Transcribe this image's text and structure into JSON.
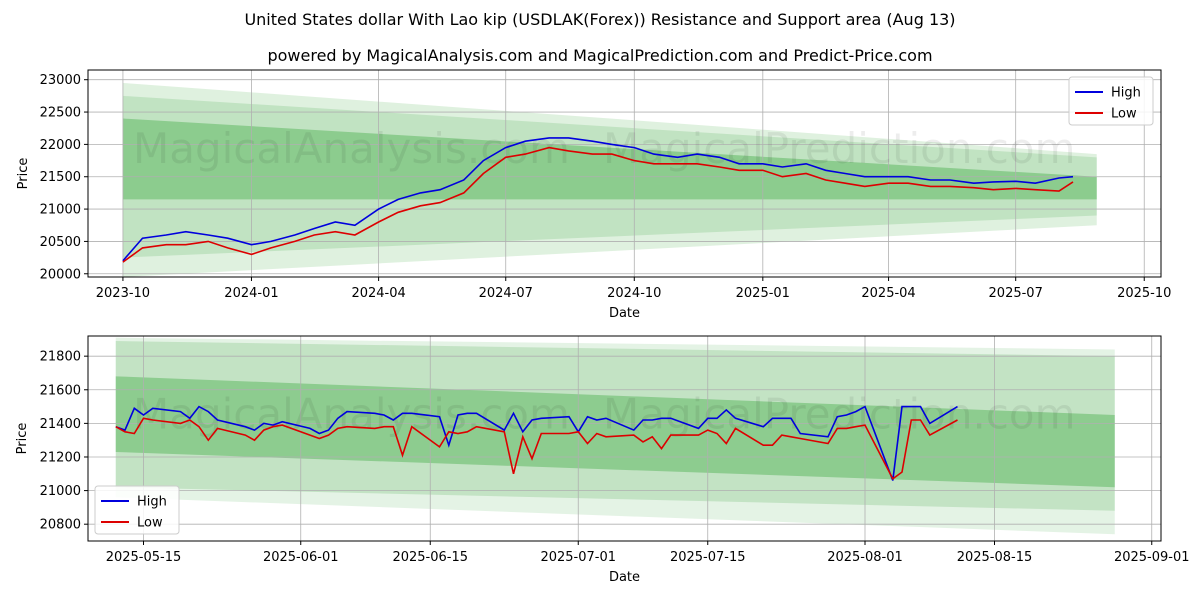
{
  "titles": {
    "main": "United States dollar With Lao kip (USDLAK(Forex)) Resistance and Support area (Aug 13)",
    "sub": "powered by MagicalAnalysis.com and MagicalPrediction.com and Predict-Price.com"
  },
  "watermarks": [
    "MagicalAnalysis.com",
    "MagicalPrediction.com"
  ],
  "colors": {
    "high": "#0000dd",
    "low": "#dd0000",
    "band": "#4caf50"
  },
  "chart_data": [
    {
      "type": "line",
      "xlabel": "Date",
      "ylabel": "Price",
      "grid": true,
      "legend": "top-right",
      "ylim": [
        19950,
        23150
      ],
      "xlim": [
        "2023-09-06",
        "2025-10-13"
      ],
      "x_ticks": [
        {
          "date": "2023-10-01",
          "label": "2023-10"
        },
        {
          "date": "2024-01-01",
          "label": "2024-01"
        },
        {
          "date": "2024-04-01",
          "label": "2024-04"
        },
        {
          "date": "2024-07-01",
          "label": "2024-07"
        },
        {
          "date": "2024-10-01",
          "label": "2024-10"
        },
        {
          "date": "2025-01-01",
          "label": "2025-01"
        },
        {
          "date": "2025-04-01",
          "label": "2025-04"
        },
        {
          "date": "2025-07-01",
          "label": "2025-07"
        },
        {
          "date": "2025-10-01",
          "label": "2025-10"
        }
      ],
      "y_ticks": [
        20000,
        20500,
        21000,
        21500,
        22000,
        22500,
        23000
      ],
      "series": [
        {
          "name": "High",
          "x": [
            "2023-10-01",
            "2023-10-15",
            "2023-11-01",
            "2023-11-15",
            "2023-12-01",
            "2023-12-15",
            "2024-01-01",
            "2024-01-15",
            "2024-02-01",
            "2024-02-15",
            "2024-03-01",
            "2024-03-15",
            "2024-04-01",
            "2024-04-15",
            "2024-05-01",
            "2024-05-15",
            "2024-06-01",
            "2024-06-15",
            "2024-07-01",
            "2024-07-15",
            "2024-08-01",
            "2024-08-15",
            "2024-09-01",
            "2024-09-15",
            "2024-10-01",
            "2024-10-15",
            "2024-11-01",
            "2024-11-15",
            "2024-12-01",
            "2024-12-15",
            "2025-01-01",
            "2025-01-15",
            "2025-02-01",
            "2025-02-15",
            "2025-03-01",
            "2025-03-15",
            "2025-04-01",
            "2025-04-15",
            "2025-05-01",
            "2025-05-15",
            "2025-06-01",
            "2025-06-15",
            "2025-07-01",
            "2025-07-15",
            "2025-08-01",
            "2025-08-11"
          ],
          "values": [
            20200,
            20550,
            20600,
            20650,
            20600,
            20550,
            20450,
            20500,
            20600,
            20700,
            20800,
            20750,
            21000,
            21150,
            21250,
            21300,
            21450,
            21750,
            21950,
            22050,
            22100,
            22100,
            22050,
            22000,
            21950,
            21850,
            21800,
            21850,
            21800,
            21700,
            21700,
            21650,
            21700,
            21600,
            21550,
            21500,
            21500,
            21500,
            21450,
            21450,
            21400,
            21420,
            21430,
            21400,
            21480,
            21500
          ]
        },
        {
          "name": "Low",
          "x": [
            "2023-10-01",
            "2023-10-15",
            "2023-11-01",
            "2023-11-15",
            "2023-12-01",
            "2023-12-15",
            "2024-01-01",
            "2024-01-15",
            "2024-02-01",
            "2024-02-15",
            "2024-03-01",
            "2024-03-15",
            "2024-04-01",
            "2024-04-15",
            "2024-05-01",
            "2024-05-15",
            "2024-06-01",
            "2024-06-15",
            "2024-07-01",
            "2024-07-15",
            "2024-08-01",
            "2024-08-15",
            "2024-09-01",
            "2024-09-15",
            "2024-10-01",
            "2024-10-15",
            "2024-11-01",
            "2024-11-15",
            "2024-12-01",
            "2024-12-15",
            "2025-01-01",
            "2025-01-15",
            "2025-02-01",
            "2025-02-15",
            "2025-03-01",
            "2025-03-15",
            "2025-04-01",
            "2025-04-15",
            "2025-05-01",
            "2025-05-15",
            "2025-06-01",
            "2025-06-15",
            "2025-07-01",
            "2025-07-15",
            "2025-08-01",
            "2025-08-11"
          ],
          "values": [
            20180,
            20400,
            20450,
            20450,
            20500,
            20400,
            20300,
            20400,
            20500,
            20600,
            20650,
            20600,
            20800,
            20950,
            21050,
            21100,
            21250,
            21550,
            21800,
            21850,
            21950,
            21900,
            21850,
            21850,
            21750,
            21700,
            21700,
            21700,
            21650,
            21600,
            21600,
            21500,
            21550,
            21450,
            21400,
            21350,
            21400,
            21400,
            21350,
            21350,
            21330,
            21300,
            21320,
            21300,
            21280,
            21420
          ]
        }
      ],
      "bands": [
        {
          "start": "2023-10-01",
          "end": "2025-08-28",
          "upper": [
            22950,
            21850
          ],
          "lower": [
            19950,
            20750
          ],
          "opacity": 0.18
        },
        {
          "start": "2023-10-01",
          "end": "2025-08-28",
          "upper": [
            22750,
            21800
          ],
          "lower": [
            20250,
            20900
          ],
          "opacity": 0.2
        },
        {
          "start": "2023-10-01",
          "end": "2025-08-28",
          "upper": [
            22400,
            21500
          ],
          "lower": [
            21150,
            21150
          ],
          "opacity": 0.45
        }
      ]
    },
    {
      "type": "line",
      "xlabel": "Date",
      "ylabel": "Price",
      "grid": true,
      "legend": "bottom-left",
      "ylim": [
        20700,
        21920
      ],
      "xlim": [
        "2025-05-09",
        "2025-09-02"
      ],
      "x_ticks": [
        {
          "date": "2025-05-15",
          "label": "2025-05-15"
        },
        {
          "date": "2025-06-01",
          "label": "2025-06-01"
        },
        {
          "date": "2025-06-15",
          "label": "2025-06-15"
        },
        {
          "date": "2025-07-01",
          "label": "2025-07-01"
        },
        {
          "date": "2025-07-15",
          "label": "2025-07-15"
        },
        {
          "date": "2025-08-01",
          "label": "2025-08-01"
        },
        {
          "date": "2025-08-15",
          "label": "2025-08-15"
        },
        {
          "date": "2025-09-01",
          "label": "2025-09-01"
        }
      ],
      "y_ticks": [
        20800,
        21000,
        21200,
        21400,
        21600,
        21800
      ],
      "series": [
        {
          "name": "High",
          "x": [
            "2025-05-12",
            "2025-05-13",
            "2025-05-14",
            "2025-05-15",
            "2025-05-16",
            "2025-05-19",
            "2025-05-20",
            "2025-05-21",
            "2025-05-22",
            "2025-05-23",
            "2025-05-26",
            "2025-05-27",
            "2025-05-28",
            "2025-05-29",
            "2025-05-30",
            "2025-06-02",
            "2025-06-03",
            "2025-06-04",
            "2025-06-05",
            "2025-06-06",
            "2025-06-09",
            "2025-06-10",
            "2025-06-11",
            "2025-06-12",
            "2025-06-13",
            "2025-06-16",
            "2025-06-17",
            "2025-06-18",
            "2025-06-19",
            "2025-06-20",
            "2025-06-23",
            "2025-06-24",
            "2025-06-25",
            "2025-06-26",
            "2025-06-27",
            "2025-06-30",
            "2025-07-01",
            "2025-07-02",
            "2025-07-03",
            "2025-07-04",
            "2025-07-07",
            "2025-07-08",
            "2025-07-09",
            "2025-07-10",
            "2025-07-11",
            "2025-07-14",
            "2025-07-15",
            "2025-07-16",
            "2025-07-17",
            "2025-07-18",
            "2025-07-21",
            "2025-07-22",
            "2025-07-23",
            "2025-07-24",
            "2025-07-25",
            "2025-07-28",
            "2025-07-29",
            "2025-07-30",
            "2025-07-31",
            "2025-08-01",
            "2025-08-04",
            "2025-08-05",
            "2025-08-06",
            "2025-08-07",
            "2025-08-08",
            "2025-08-11"
          ],
          "values": [
            21380,
            21360,
            21490,
            21450,
            21490,
            21470,
            21430,
            21500,
            21470,
            21420,
            21380,
            21360,
            21400,
            21390,
            21410,
            21370,
            21340,
            21360,
            21430,
            21470,
            21460,
            21450,
            21420,
            21460,
            21460,
            21440,
            21270,
            21450,
            21460,
            21460,
            21360,
            21460,
            21350,
            21420,
            21430,
            21440,
            21350,
            21440,
            21420,
            21430,
            21360,
            21420,
            21420,
            21430,
            21430,
            21370,
            21430,
            21430,
            21480,
            21430,
            21380,
            21430,
            21430,
            21430,
            21340,
            21320,
            21440,
            21450,
            21470,
            21500,
            21060,
            21500,
            21500,
            21500,
            21400,
            21500
          ]
        },
        {
          "name": "Low",
          "x": [
            "2025-05-12",
            "2025-05-13",
            "2025-05-14",
            "2025-05-15",
            "2025-05-16",
            "2025-05-19",
            "2025-05-20",
            "2025-05-21",
            "2025-05-22",
            "2025-05-23",
            "2025-05-26",
            "2025-05-27",
            "2025-05-28",
            "2025-05-29",
            "2025-05-30",
            "2025-06-02",
            "2025-06-03",
            "2025-06-04",
            "2025-06-05",
            "2025-06-06",
            "2025-06-09",
            "2025-06-10",
            "2025-06-11",
            "2025-06-12",
            "2025-06-13",
            "2025-06-16",
            "2025-06-17",
            "2025-06-18",
            "2025-06-19",
            "2025-06-20",
            "2025-06-23",
            "2025-06-24",
            "2025-06-25",
            "2025-06-26",
            "2025-06-27",
            "2025-06-30",
            "2025-07-01",
            "2025-07-02",
            "2025-07-03",
            "2025-07-04",
            "2025-07-07",
            "2025-07-08",
            "2025-07-09",
            "2025-07-10",
            "2025-07-11",
            "2025-07-14",
            "2025-07-15",
            "2025-07-16",
            "2025-07-17",
            "2025-07-18",
            "2025-07-21",
            "2025-07-22",
            "2025-07-23",
            "2025-07-24",
            "2025-07-25",
            "2025-07-28",
            "2025-07-29",
            "2025-07-30",
            "2025-07-31",
            "2025-08-01",
            "2025-08-04",
            "2025-08-05",
            "2025-08-06",
            "2025-08-07",
            "2025-08-08",
            "2025-08-11"
          ],
          "values": [
            21380,
            21350,
            21340,
            21430,
            21420,
            21400,
            21420,
            21380,
            21300,
            21370,
            21330,
            21300,
            21360,
            21380,
            21390,
            21330,
            21310,
            21330,
            21370,
            21380,
            21370,
            21380,
            21380,
            21210,
            21380,
            21260,
            21350,
            21340,
            21350,
            21380,
            21350,
            21100,
            21320,
            21190,
            21340,
            21340,
            21350,
            21280,
            21340,
            21320,
            21330,
            21290,
            21320,
            21250,
            21330,
            21330,
            21360,
            21340,
            21280,
            21370,
            21270,
            21270,
            21330,
            21320,
            21310,
            21280,
            21370,
            21370,
            21380,
            21390,
            21070,
            21110,
            21420,
            21420,
            21330,
            21420
          ]
        }
      ],
      "bands": [
        {
          "start": "2025-05-12",
          "end": "2025-08-28",
          "upper": [
            21910,
            21840
          ],
          "lower": [
            20960,
            20740
          ],
          "opacity": 0.15
        },
        {
          "start": "2025-05-12",
          "end": "2025-08-28",
          "upper": [
            21890,
            21800
          ],
          "lower": [
            21020,
            20880
          ],
          "opacity": 0.22
        },
        {
          "start": "2025-05-12",
          "end": "2025-08-28",
          "upper": [
            21680,
            21450
          ],
          "lower": [
            21230,
            21020
          ],
          "opacity": 0.45
        }
      ]
    }
  ]
}
